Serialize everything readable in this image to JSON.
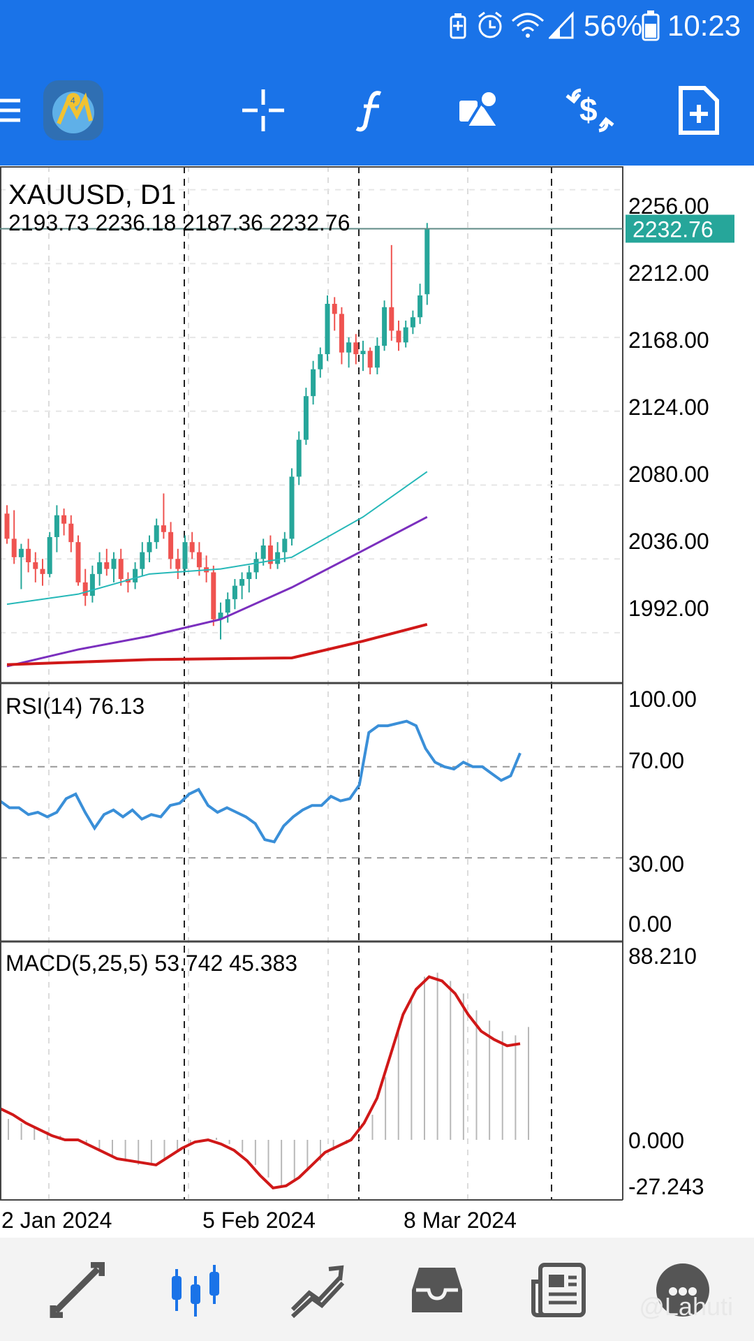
{
  "status_bar": {
    "battery_percent": "56%",
    "time": "10:23",
    "icons": [
      "battery-saver-icon",
      "alarm-icon",
      "wifi-icon",
      "signal-icon",
      "battery-icon"
    ]
  },
  "toolbar": {
    "buttons": [
      "menu-icon",
      "app-logo-icon",
      "crosshair-icon",
      "indicators-icon",
      "objects-icon",
      "trade-icon",
      "new-order-icon"
    ]
  },
  "chart": {
    "symbol": "XAUUSD, D1",
    "ohlc": "2193.73 2236.18 2187.36 2232.76",
    "current_price": "2232.76",
    "current_price_value": 2232.76,
    "price_label_color": "#26a69a",
    "up_color": "#26a69a",
    "down_color": "#ef5350",
    "price_ticks": [
      "2256.00",
      "2212.00",
      "2168.00",
      "2124.00",
      "2080.00",
      "2036.00",
      "1992.00"
    ],
    "rsi_label": "RSI(14) 76.13",
    "rsi_ticks": [
      "100.00",
      "70.00",
      "30.00",
      "0.00"
    ],
    "macd_label": "MACD(5,25,5) 53.742 45.383",
    "macd_ticks": [
      "88.210",
      "0.000",
      "-27.243"
    ],
    "date_labels": [
      "2 Jan 2024",
      "5 Feb 2024",
      "8 Mar 2024"
    ]
  },
  "chart_data": {
    "type": "candlestick",
    "title": "XAUUSD, D1",
    "ylim": [
      1962,
      2270
    ],
    "candles": [
      [
        2063,
        2068,
        2045,
        2048
      ],
      [
        2048,
        2065,
        2033,
        2037
      ],
      [
        2037,
        2045,
        2018,
        2042
      ],
      [
        2042,
        2048,
        2028,
        2034
      ],
      [
        2034,
        2040,
        2022,
        2030
      ],
      [
        2030,
        2036,
        2020,
        2027
      ],
      [
        2027,
        2052,
        2025,
        2049
      ],
      [
        2049,
        2068,
        2040,
        2062
      ],
      [
        2062,
        2066,
        2050,
        2057
      ],
      [
        2057,
        2062,
        2040,
        2046
      ],
      [
        2046,
        2050,
        2020,
        2022
      ],
      [
        2022,
        2030,
        2008,
        2014
      ],
      [
        2014,
        2032,
        2010,
        2027
      ],
      [
        2027,
        2040,
        2020,
        2034
      ],
      [
        2034,
        2042,
        2026,
        2030
      ],
      [
        2030,
        2040,
        2022,
        2036
      ],
      [
        2036,
        2042,
        2020,
        2024
      ],
      [
        2024,
        2028,
        2016,
        2022
      ],
      [
        2022,
        2034,
        2018,
        2030
      ],
      [
        2030,
        2046,
        2026,
        2040
      ],
      [
        2040,
        2050,
        2034,
        2046
      ],
      [
        2046,
        2060,
        2042,
        2056
      ],
      [
        2056,
        2075,
        2048,
        2052
      ],
      [
        2052,
        2058,
        2030,
        2036
      ],
      [
        2036,
        2042,
        2024,
        2030
      ],
      [
        2030,
        2050,
        2028,
        2046
      ],
      [
        2046,
        2052,
        2036,
        2040
      ],
      [
        2040,
        2046,
        2026,
        2031
      ],
      [
        2031,
        2038,
        2022,
        2028
      ],
      [
        2028,
        2032,
        1996,
        2000
      ],
      [
        2000,
        2010,
        1988,
        2004
      ],
      [
        2004,
        2016,
        1998,
        2012
      ],
      [
        2012,
        2024,
        2006,
        2020
      ],
      [
        2020,
        2028,
        2012,
        2024
      ],
      [
        2024,
        2032,
        2016,
        2028
      ],
      [
        2028,
        2040,
        2024,
        2036
      ],
      [
        2036,
        2048,
        2032,
        2044
      ],
      [
        2044,
        2050,
        2030,
        2033
      ],
      [
        2033,
        2046,
        2030,
        2040
      ],
      [
        2040,
        2052,
        2034,
        2048
      ],
      [
        2048,
        2090,
        2044,
        2085
      ],
      [
        2085,
        2112,
        2080,
        2107
      ],
      [
        2107,
        2138,
        2104,
        2133
      ],
      [
        2133,
        2154,
        2128,
        2149
      ],
      [
        2149,
        2162,
        2144,
        2158
      ],
      [
        2158,
        2193,
        2154,
        2188
      ],
      [
        2188,
        2192,
        2172,
        2182
      ],
      [
        2182,
        2186,
        2152,
        2159
      ],
      [
        2159,
        2168,
        2150,
        2165
      ],
      [
        2165,
        2170,
        2152,
        2158
      ],
      [
        2158,
        2166,
        2148,
        2160
      ],
      [
        2160,
        2162,
        2146,
        2150
      ],
      [
        2150,
        2168,
        2146,
        2163
      ],
      [
        2163,
        2190,
        2160,
        2186
      ],
      [
        2186,
        2223,
        2166,
        2172
      ],
      [
        2172,
        2178,
        2160,
        2165
      ],
      [
        2165,
        2178,
        2162,
        2174
      ],
      [
        2174,
        2184,
        2170,
        2180
      ],
      [
        2180,
        2200,
        2176,
        2193
      ],
      [
        2193.73,
        2236.18,
        2187.36,
        2232.76
      ]
    ],
    "ma_fast": [
      [
        0,
        2009
      ],
      [
        10,
        2015
      ],
      [
        20,
        2027
      ],
      [
        30,
        2030
      ],
      [
        40,
        2037
      ],
      [
        50,
        2061
      ],
      [
        59,
        2088
      ]
    ],
    "ma_medium": [
      [
        0,
        1972
      ],
      [
        10,
        1982
      ],
      [
        20,
        1990
      ],
      [
        30,
        2000
      ],
      [
        40,
        2019
      ],
      [
        50,
        2041
      ],
      [
        59,
        2061
      ]
    ],
    "ma_slow": [
      [
        0,
        1973
      ],
      [
        20,
        1976
      ],
      [
        40,
        1977
      ],
      [
        50,
        1987
      ],
      [
        59,
        1997
      ]
    ],
    "rsi": [
      55,
      52,
      52,
      49,
      50,
      48,
      50,
      56,
      58,
      50,
      43,
      49,
      51,
      48,
      51,
      47,
      49,
      48,
      53,
      54,
      58,
      60,
      53,
      50,
      52,
      50,
      48,
      45,
      38,
      37,
      44,
      48,
      51,
      53,
      53,
      57,
      55,
      56,
      62,
      85,
      88,
      88,
      89,
      90,
      88,
      78,
      72,
      70,
      69,
      72,
      70,
      70,
      67,
      64,
      66,
      76
    ],
    "macd_line": [
      15,
      12,
      8,
      5,
      2,
      0,
      0,
      -3,
      -6,
      -9,
      -10,
      -11,
      -12,
      -8,
      -4,
      -1,
      0,
      -2,
      -5,
      -10,
      -17,
      -23,
      -22,
      -18,
      -12,
      -6,
      -3,
      0,
      8,
      20,
      40,
      60,
      72,
      78,
      76,
      70,
      60,
      52,
      48,
      45,
      46
    ],
    "macd_hist": [
      10,
      8,
      6,
      4,
      2,
      0,
      -2,
      -5,
      -8,
      -10,
      -12,
      -11,
      -9,
      -6,
      -2,
      0,
      1,
      -2,
      -6,
      -12,
      -18,
      -22,
      -20,
      -15,
      -10,
      -5,
      -2,
      1,
      12,
      30,
      52,
      68,
      78,
      80,
      76,
      70,
      62,
      57,
      52,
      50,
      54
    ],
    "rsi_levels": [
      70,
      30
    ],
    "macd_ylim": [
      -27.243,
      88.21
    ]
  },
  "bottom_nav": {
    "items": [
      "quotes-icon",
      "chart-icon",
      "trade-icon",
      "history-icon",
      "news-icon",
      "messages-icon"
    ]
  },
  "watermark": "@Lahuti"
}
